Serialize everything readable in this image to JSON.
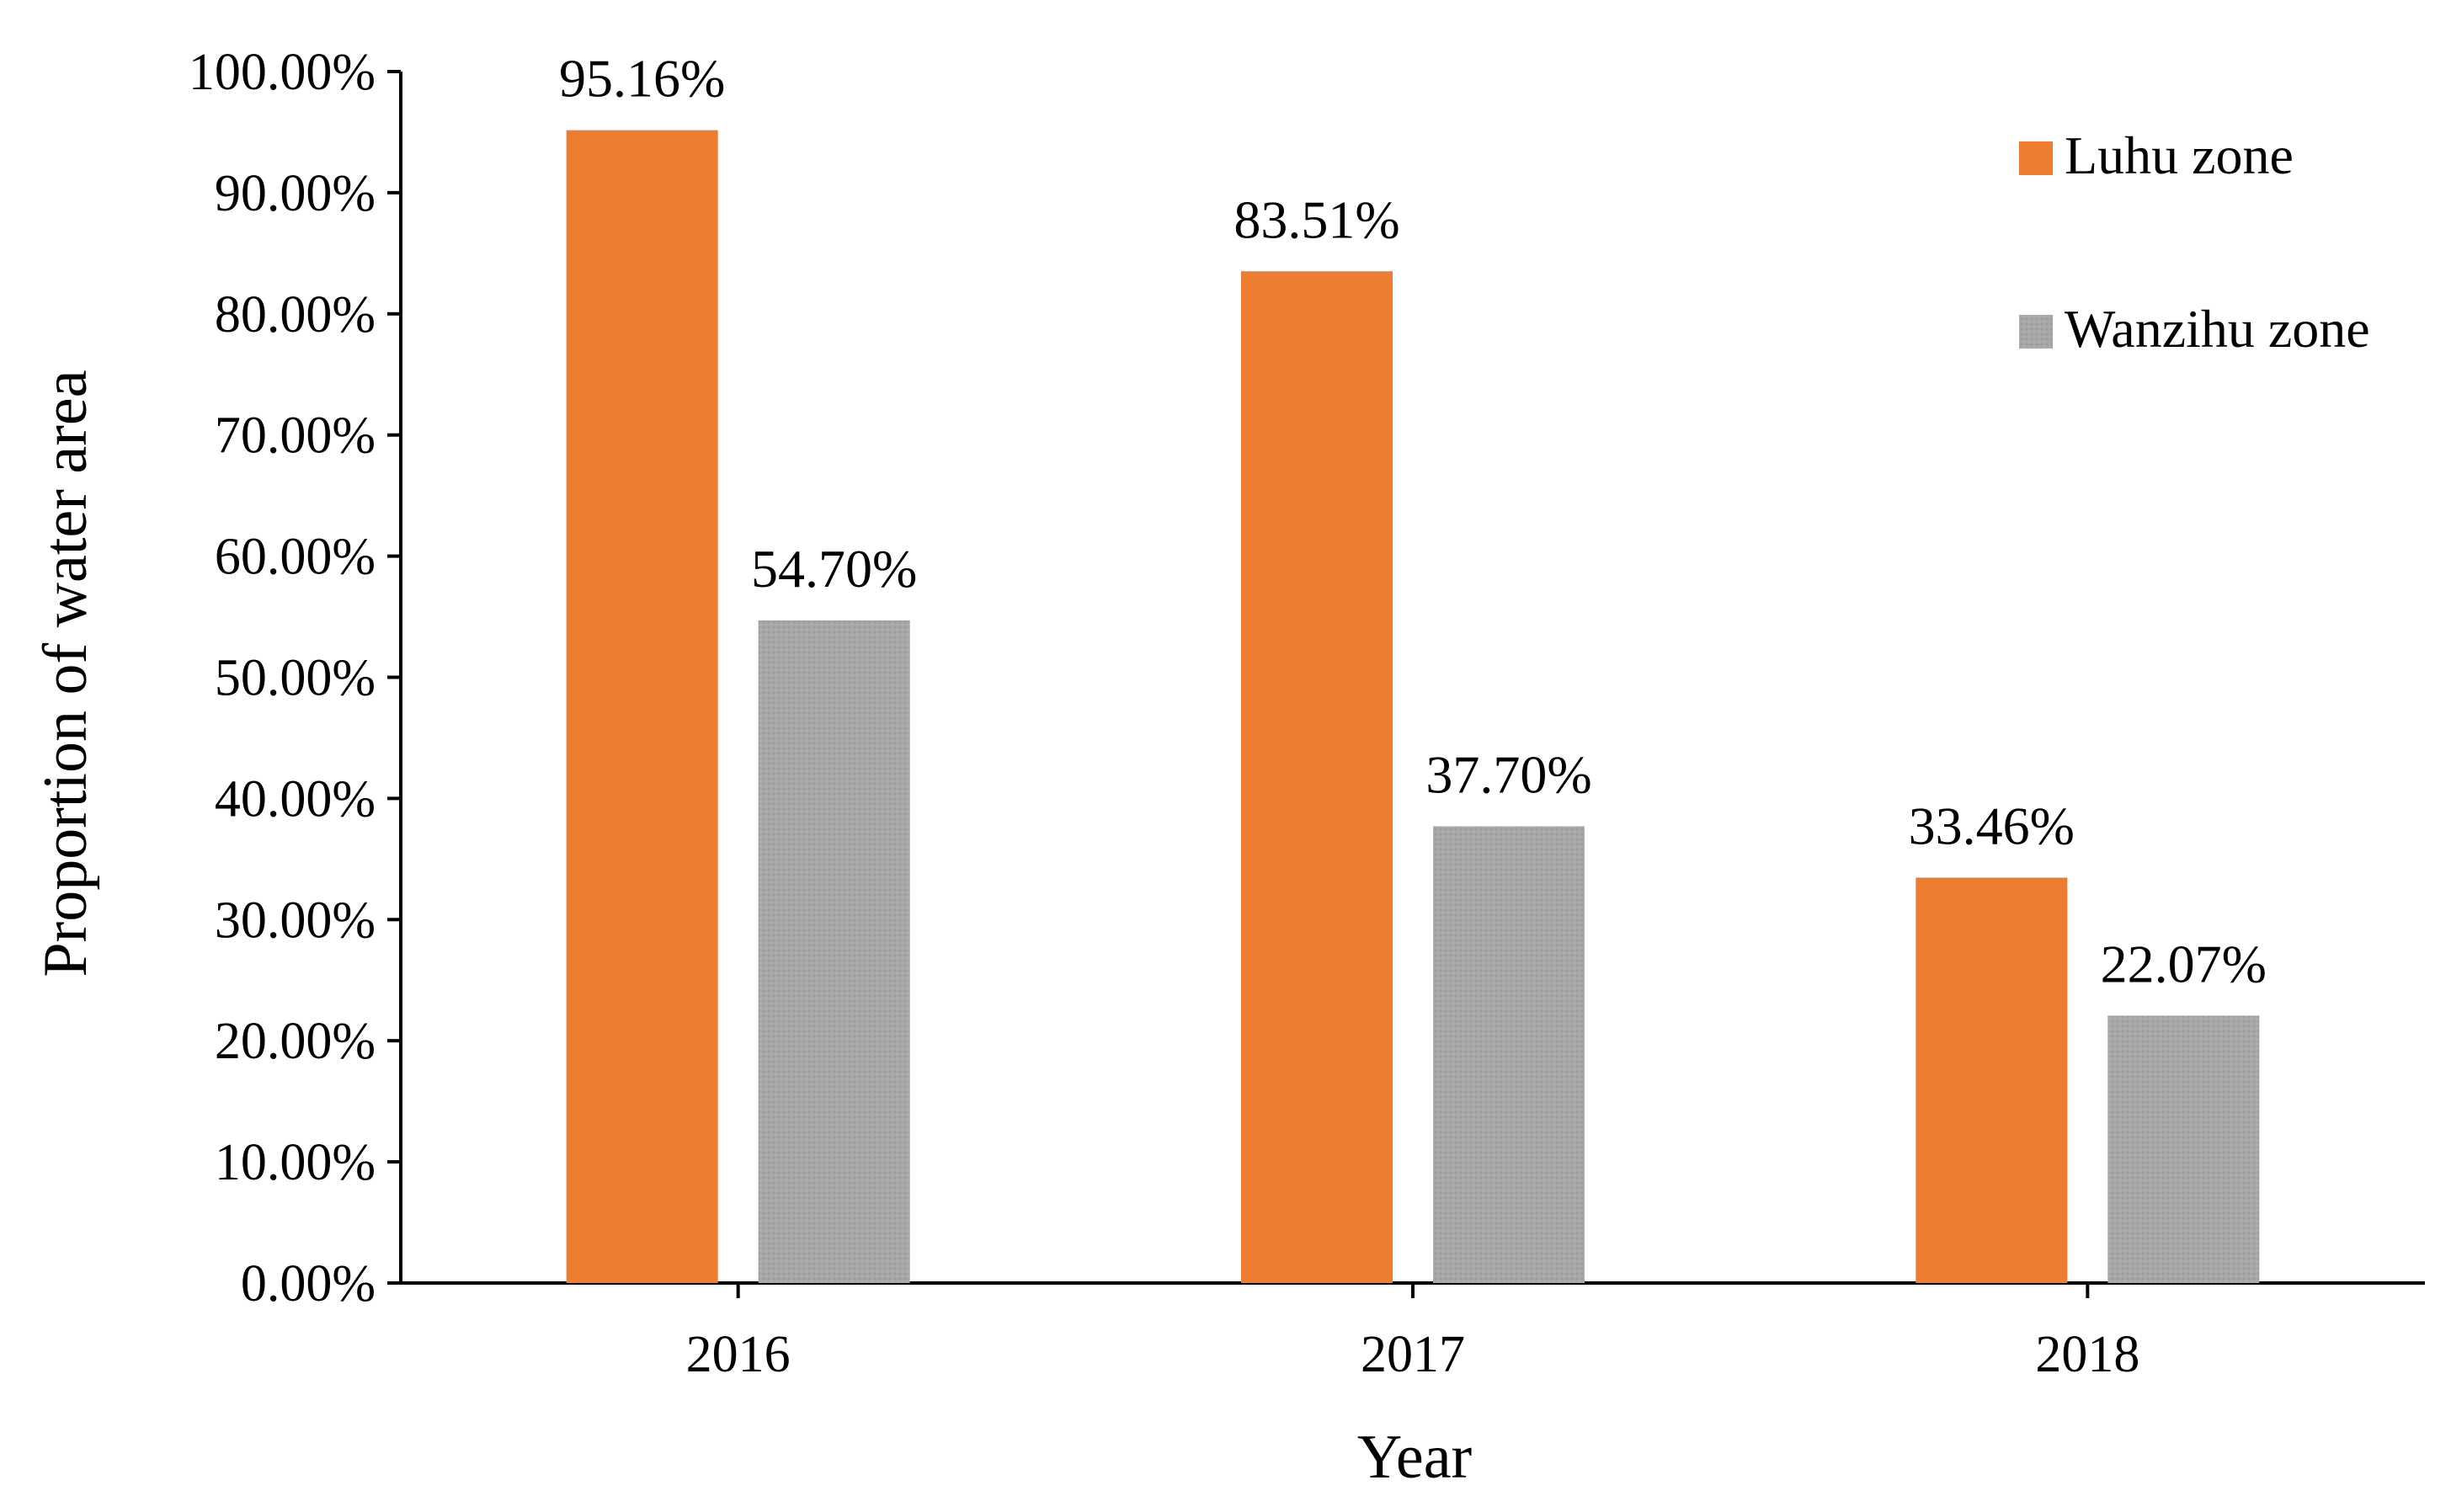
{
  "chart_data": {
    "type": "bar",
    "categories": [
      "2016",
      "2017",
      "2018"
    ],
    "series": [
      {
        "name": "Luhu zone",
        "values": [
          95.16,
          83.51,
          33.46
        ],
        "labels": [
          "95.16%",
          "83.51%",
          "33.46%"
        ],
        "color": "#ED7D31"
      },
      {
        "name": "Wanzihu zone",
        "values": [
          54.7,
          37.7,
          22.07
        ],
        "labels": [
          "54.70%",
          "37.70%",
          "22.07%"
        ],
        "color": "#A6A6A6"
      }
    ],
    "xlabel": "Year",
    "ylabel": "Proportion of water area",
    "ylim": [
      0,
      100
    ],
    "yticks": [
      0,
      10,
      20,
      30,
      40,
      50,
      60,
      70,
      80,
      90,
      100
    ],
    "ytick_labels": [
      "0.00%",
      "10.00%",
      "20.00%",
      "30.00%",
      "40.00%",
      "50.00%",
      "60.00%",
      "70.00%",
      "80.00%",
      "90.00%",
      "100.00%"
    ],
    "grid": false,
    "legend_position": "top-right"
  }
}
